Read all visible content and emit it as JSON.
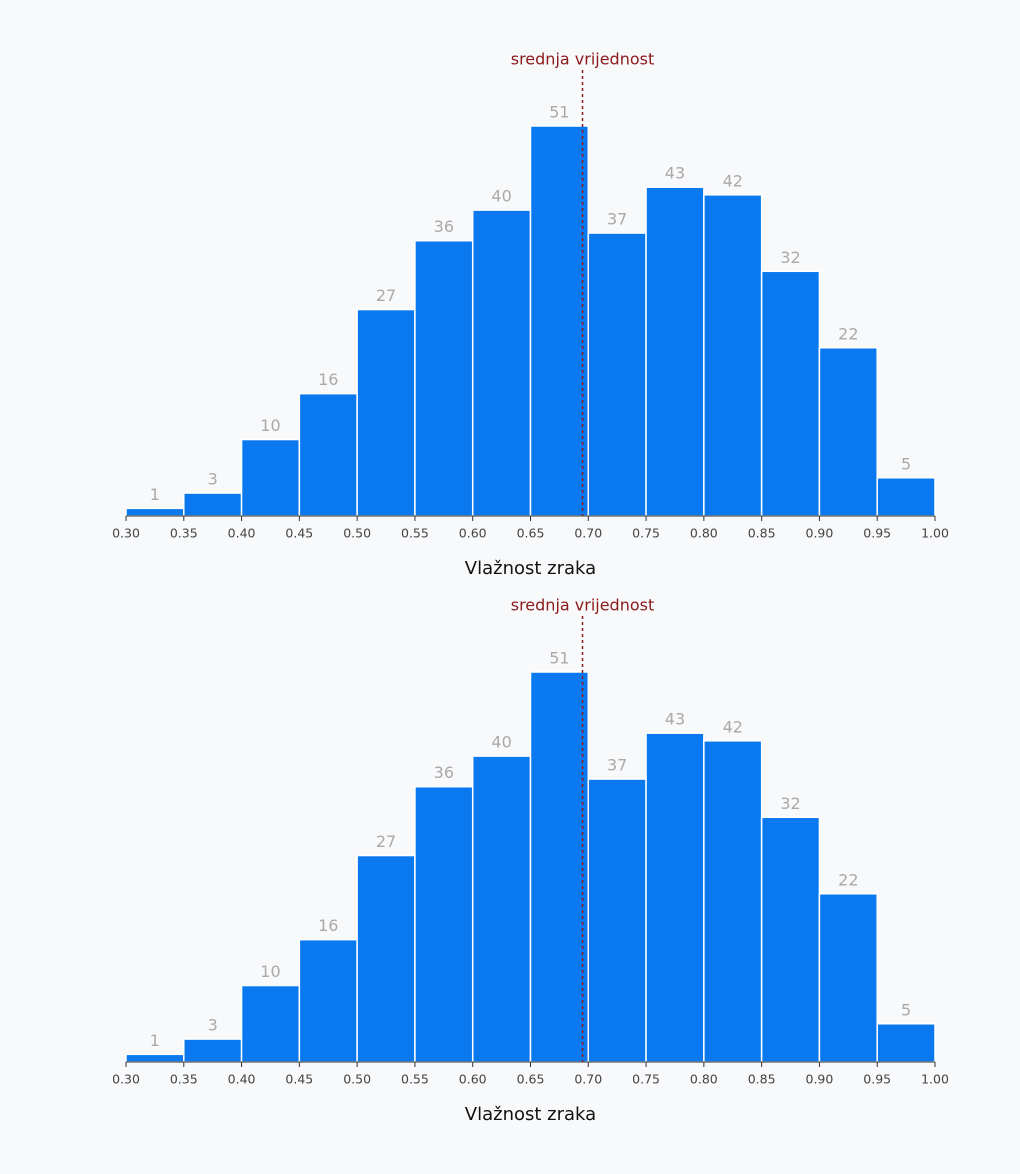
{
  "chart_data": [
    {
      "type": "histogram",
      "color": "#0a78ef",
      "bins": [
        0.3,
        0.35,
        0.4,
        0.45,
        0.5,
        0.55,
        0.6,
        0.65,
        0.7,
        0.75,
        0.8,
        0.85,
        0.9,
        0.95,
        1.0
      ],
      "values": [
        1,
        3,
        10,
        16,
        27,
        36,
        40,
        51,
        37,
        43,
        42,
        32,
        22,
        5
      ],
      "xlim": [
        0.3,
        1.0
      ],
      "xticks": [
        {
          "value": 0.3,
          "label": "0.30"
        },
        {
          "value": 0.35,
          "label": "0.35"
        },
        {
          "value": 0.4,
          "label": "0.40"
        },
        {
          "value": 0.45,
          "label": "0.45"
        },
        {
          "value": 0.5,
          "label": "0.50"
        },
        {
          "value": 0.55,
          "label": "0.55"
        },
        {
          "value": 0.6,
          "label": "0.60"
        },
        {
          "value": 0.65,
          "label": "0.65"
        },
        {
          "value": 0.7,
          "label": "0.70"
        },
        {
          "value": 0.75,
          "label": "0.75"
        },
        {
          "value": 0.8,
          "label": "0.80"
        },
        {
          "value": 0.85,
          "label": "0.85"
        },
        {
          "value": 0.9,
          "label": "0.90"
        },
        {
          "value": 0.95,
          "label": "0.95"
        },
        {
          "value": 1.0,
          "label": "1.00"
        }
      ],
      "xlabel": "Vlažnost zraka",
      "annotation": {
        "text": "srednja vrijednost",
        "x": 0.695,
        "color": "#8b1a1a"
      }
    },
    {
      "type": "histogram",
      "color": "#0a78ef",
      "bins": [
        0.3,
        0.35,
        0.4,
        0.45,
        0.5,
        0.55,
        0.6,
        0.65,
        0.7,
        0.75,
        0.8,
        0.85,
        0.9,
        0.95,
        1.0
      ],
      "values": [
        1,
        3,
        10,
        16,
        27,
        36,
        40,
        51,
        37,
        43,
        42,
        32,
        22,
        5
      ],
      "xlim": [
        0.3,
        1.0
      ],
      "xticks": [
        {
          "value": 0.3,
          "label": "0.30"
        },
        {
          "value": 0.35,
          "label": "0.35"
        },
        {
          "value": 0.4,
          "label": "0.40"
        },
        {
          "value": 0.45,
          "label": "0.45"
        },
        {
          "value": 0.5,
          "label": "0.50"
        },
        {
          "value": 0.55,
          "label": "0.55"
        },
        {
          "value": 0.6,
          "label": "0.60"
        },
        {
          "value": 0.65,
          "label": "0.65"
        },
        {
          "value": 0.7,
          "label": "0.70"
        },
        {
          "value": 0.75,
          "label": "0.75"
        },
        {
          "value": 0.8,
          "label": "0.80"
        },
        {
          "value": 0.85,
          "label": "0.85"
        },
        {
          "value": 0.9,
          "label": "0.90"
        },
        {
          "value": 0.95,
          "label": "0.95"
        },
        {
          "value": 1.0,
          "label": "1.00"
        }
      ],
      "xlabel": "Vlažnost zraka",
      "annotation": {
        "text": "srednja vrijednost",
        "x": 0.695,
        "color": "#8b1a1a"
      }
    }
  ]
}
